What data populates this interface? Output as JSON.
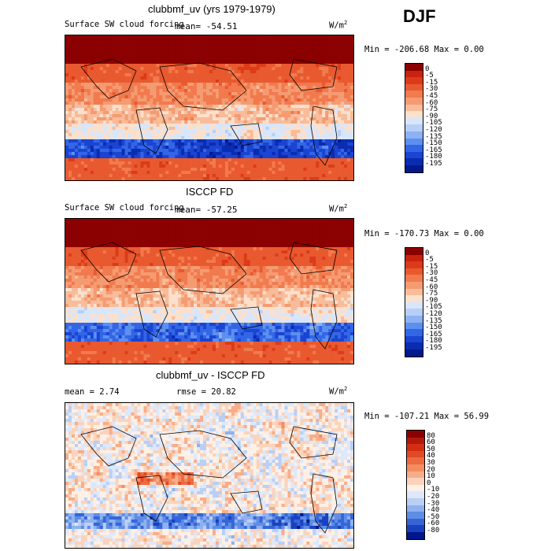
{
  "season": "DJF",
  "panels": [
    {
      "id": "model",
      "title": "clubbmf_uv (yrs 1979-1979)",
      "left_label": "Surface SW cloud forcing",
      "mean_text": "mean= -54.51",
      "rmse_text": "",
      "units": "W/m",
      "units_exp": "2",
      "minmax_text": "Min = -206.68  Max =    0.00",
      "levels": [
        "0",
        "-5",
        "-15",
        "-30",
        "-45",
        "-60",
        "-75",
        "-90",
        "-105",
        "-120",
        "-135",
        "-150",
        "-165",
        "-180",
        "-195"
      ],
      "colors": [
        "#8b0000",
        "#c8230e",
        "#dc3b1a",
        "#e9592f",
        "#f17a4e",
        "#f59b72",
        "#f8bc9a",
        "#fbe0cc",
        "#d8e6fb",
        "#b7cff7",
        "#8db2f2",
        "#5d8ff0",
        "#3366e6",
        "#1a44d1",
        "#0a2cb0",
        "#001a8c"
      ],
      "mean_value": -54.51,
      "min": -206.68,
      "max": 0.0
    },
    {
      "id": "obs",
      "title": "ISCCP FD",
      "left_label": "Surface SW cloud forcing",
      "mean_text": "mean= -57.25",
      "rmse_text": "",
      "units": "W/m",
      "units_exp": "2",
      "minmax_text": "Min = -170.73  Max =    0.00",
      "levels": [
        "0",
        "-5",
        "-15",
        "-30",
        "-45",
        "-60",
        "-75",
        "-90",
        "-105",
        "-120",
        "-135",
        "-150",
        "-165",
        "-180",
        "-195"
      ],
      "colors": [
        "#8b0000",
        "#c8230e",
        "#dc3b1a",
        "#e9592f",
        "#f17a4e",
        "#f59b72",
        "#f8bc9a",
        "#fbe0cc",
        "#d8e6fb",
        "#b7cff7",
        "#8db2f2",
        "#5d8ff0",
        "#3366e6",
        "#1a44d1",
        "#0a2cb0",
        "#001a8c"
      ],
      "mean_value": -57.25,
      "min": -170.73,
      "max": 0.0
    },
    {
      "id": "diff",
      "title": "clubbmf_uv - ISCCP FD",
      "left_label": "mean =    2.74",
      "mean_text": "",
      "rmse_text": "rmse =   20.82",
      "units": "W/m",
      "units_exp": "2",
      "minmax_text": "Min = -107.21  Max =  56.99",
      "levels": [
        "80",
        "60",
        "50",
        "40",
        "30",
        "20",
        "10",
        "0",
        "-10",
        "-20",
        "-30",
        "-40",
        "-50",
        "-60",
        "-80"
      ],
      "colors": [
        "#8b0000",
        "#b5180a",
        "#d22e14",
        "#e24a26",
        "#ee6a40",
        "#f48c62",
        "#f8ad88",
        "#fbd3bb",
        "#fdf0e6",
        "#dde8fb",
        "#b9cff5",
        "#8fb1ef",
        "#5f8de6",
        "#3566d8",
        "#1a41bf",
        "#00168a"
      ],
      "mean_value": 2.74,
      "rmse": 20.82,
      "min": -107.21,
      "max": 56.99
    }
  ],
  "chart_data": [
    {
      "type": "heatmap",
      "title": "clubbmf_uv (yrs 1979-1979)",
      "variable": "Surface SW cloud forcing",
      "units": "W/m2",
      "season": "DJF",
      "mean": -54.51,
      "min": -206.68,
      "max": 0.0,
      "colorbar_levels": [
        0,
        -5,
        -15,
        -30,
        -45,
        -60,
        -75,
        -90,
        -105,
        -120,
        -135,
        -150,
        -165,
        -180,
        -195
      ]
    },
    {
      "type": "heatmap",
      "title": "ISCCP FD",
      "variable": "Surface SW cloud forcing",
      "units": "W/m2",
      "season": "DJF",
      "mean": -57.25,
      "min": -170.73,
      "max": 0.0,
      "colorbar_levels": [
        0,
        -5,
        -15,
        -30,
        -45,
        -60,
        -75,
        -90,
        -105,
        -120,
        -135,
        -150,
        -165,
        -180,
        -195
      ]
    },
    {
      "type": "heatmap",
      "title": "clubbmf_uv - ISCCP FD",
      "units": "W/m2",
      "season": "DJF",
      "mean": 2.74,
      "rmse": 20.82,
      "min": -107.21,
      "max": 56.99,
      "colorbar_levels": [
        80,
        60,
        50,
        40,
        30,
        20,
        10,
        0,
        -10,
        -20,
        -30,
        -40,
        -50,
        -60,
        -80
      ]
    }
  ]
}
